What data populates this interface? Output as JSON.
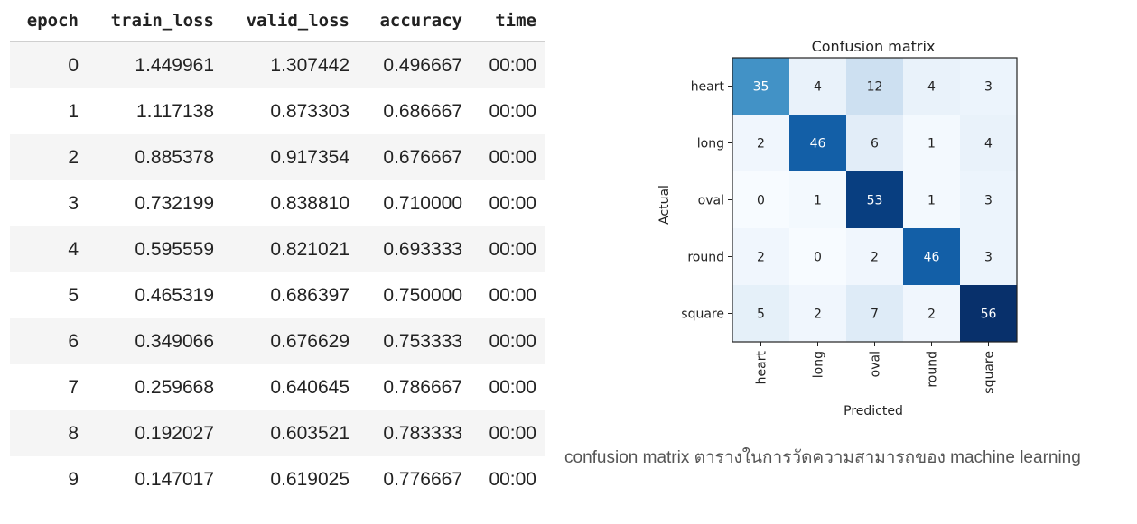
{
  "training_table": {
    "columns": [
      "epoch",
      "train_loss",
      "valid_loss",
      "accuracy",
      "time"
    ],
    "rows": [
      [
        "0",
        "1.449961",
        "1.307442",
        "0.496667",
        "00:00"
      ],
      [
        "1",
        "1.117138",
        "0.873303",
        "0.686667",
        "00:00"
      ],
      [
        "2",
        "0.885378",
        "0.917354",
        "0.676667",
        "00:00"
      ],
      [
        "3",
        "0.732199",
        "0.838810",
        "0.710000",
        "00:00"
      ],
      [
        "4",
        "0.595559",
        "0.821021",
        "0.693333",
        "00:00"
      ],
      [
        "5",
        "0.465319",
        "0.686397",
        "0.750000",
        "00:00"
      ],
      [
        "6",
        "0.349066",
        "0.676629",
        "0.753333",
        "00:00"
      ],
      [
        "7",
        "0.259668",
        "0.640645",
        "0.786667",
        "00:00"
      ],
      [
        "8",
        "0.192027",
        "0.603521",
        "0.783333",
        "00:00"
      ],
      [
        "9",
        "0.147017",
        "0.619025",
        "0.776667",
        "00:00"
      ]
    ]
  },
  "chart_data": {
    "type": "heatmap",
    "title": "Confusion matrix",
    "xlabel": "Predicted",
    "ylabel": "Actual",
    "x": [
      "heart",
      "long",
      "oval",
      "round",
      "square"
    ],
    "y": [
      "heart",
      "long",
      "oval",
      "round",
      "square"
    ],
    "values": [
      [
        35,
        4,
        12,
        4,
        3
      ],
      [
        2,
        46,
        6,
        1,
        4
      ],
      [
        0,
        1,
        53,
        1,
        3
      ],
      [
        2,
        0,
        2,
        46,
        3
      ],
      [
        5,
        2,
        7,
        2,
        56
      ]
    ],
    "colormap": "Blues",
    "color_range": [
      "#f7fbff",
      "#08306b"
    ],
    "grid": false
  },
  "caption": "confusion matrix ตารางในการวัดความสามารถของ machine learning"
}
